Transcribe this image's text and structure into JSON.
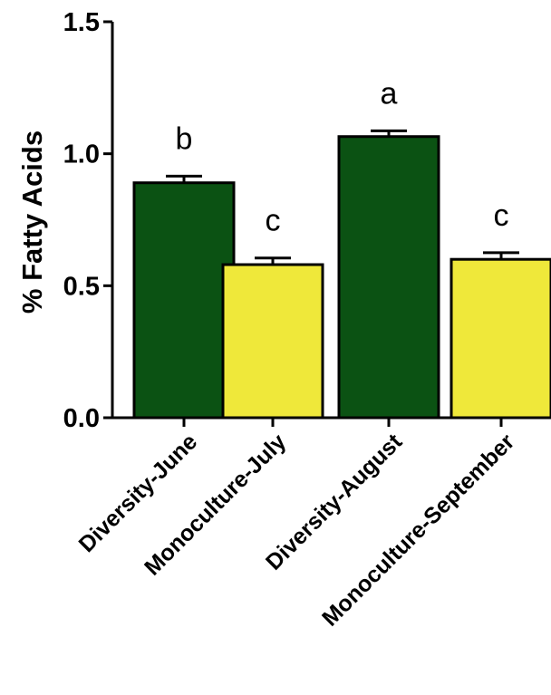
{
  "chart_data": {
    "type": "bar",
    "title": "",
    "xlabel": "",
    "ylabel": "% Fatty Acids",
    "ylim": [
      0,
      1.5
    ],
    "yticks": [
      "0.0",
      "0.5",
      "1.0",
      "1.5"
    ],
    "ytick_values": [
      0,
      0.5,
      1.0,
      1.5
    ],
    "categories": [
      "Diversity-June",
      "Monoculture-July",
      "Diversity-August",
      "Monoculture-September"
    ],
    "values": [
      0.89,
      0.58,
      1.065,
      0.6
    ],
    "errors": [
      0.025,
      0.025,
      0.022,
      0.025
    ],
    "significance_letters": [
      "b",
      "c",
      "a",
      "c"
    ],
    "bar_colors": [
      "#0b5213",
      "#efe83a",
      "#0b5213",
      "#efe83a"
    ],
    "grid": false,
    "legend": "none"
  }
}
